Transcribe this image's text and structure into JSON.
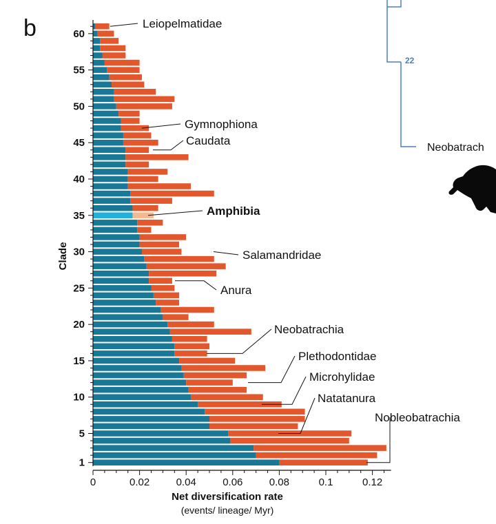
{
  "panel_label": "b",
  "colors": {
    "blue": "#1a7897",
    "orange": "#e2572c",
    "highlight_blue": "#22b0dc",
    "highlight_orange": "#f4b98e",
    "tree_line": "#4c7fc1"
  },
  "chart_data": {
    "type": "bar",
    "orientation": "horizontal",
    "stacked": true,
    "xlabel": "Net diversification rate",
    "xlabel_sub": "(events/ lineage/ Myr)",
    "ylabel": "Clade",
    "xlim": [
      0,
      0.128
    ],
    "ylim": [
      1,
      61
    ],
    "xticks": [
      "0",
      "0.02",
      "0.04",
      "0.06",
      "0.08",
      "0.1",
      "0.12"
    ],
    "yticks": [
      "1",
      "5",
      "10",
      "15",
      "20",
      "25",
      "30",
      "35",
      "40",
      "45",
      "50",
      "55",
      "60"
    ],
    "categories": [
      1,
      2,
      3,
      4,
      5,
      6,
      7,
      8,
      9,
      10,
      11,
      12,
      13,
      14,
      15,
      16,
      17,
      18,
      19,
      20,
      21,
      22,
      23,
      24,
      25,
      26,
      27,
      28,
      29,
      30,
      31,
      32,
      33,
      34,
      35,
      36,
      37,
      38,
      39,
      40,
      41,
      42,
      43,
      44,
      45,
      46,
      47,
      48,
      49,
      50,
      51,
      52,
      53,
      54,
      55,
      56,
      57,
      58,
      59,
      60,
      61
    ],
    "highlight_clade": 35,
    "series": [
      {
        "values": [
          0.08,
          0.07,
          0.069,
          0.059,
          0.058,
          0.05,
          0.05,
          0.048,
          0.045,
          0.042,
          0.041,
          0.04,
          0.039,
          0.038,
          0.037,
          0.035,
          0.035,
          0.034,
          0.033,
          0.032,
          0.03,
          0.029,
          0.027,
          0.026,
          0.025,
          0.024,
          0.024,
          0.023,
          0.022,
          0.021,
          0.02,
          0.02,
          0.019,
          0.019,
          0.017,
          0.017,
          0.016,
          0.016,
          0.015,
          0.015,
          0.015,
          0.014,
          0.014,
          0.014,
          0.013,
          0.013,
          0.012,
          0.012,
          0.011,
          0.01,
          0.009,
          0.009,
          0.008,
          0.007,
          0.006,
          0.005,
          0.004,
          0.003,
          0.003,
          0.002,
          0.001
        ]
      },
      {
        "values": [
          0.038,
          0.052,
          0.057,
          0.051,
          0.053,
          0.038,
          0.041,
          0.043,
          0.036,
          0.031,
          0.025,
          0.02,
          0.027,
          0.036,
          0.024,
          0.014,
          0.015,
          0.015,
          0.035,
          0.02,
          0.011,
          0.023,
          0.01,
          0.011,
          0.01,
          0.01,
          0.029,
          0.034,
          0.03,
          0.017,
          0.017,
          0.02,
          0.006,
          0.011,
          0.009,
          0.011,
          0.018,
          0.036,
          0.027,
          0.013,
          0.017,
          0.01,
          0.027,
          0.01,
          0.015,
          0.012,
          0.012,
          0.008,
          0.009,
          0.024,
          0.026,
          0.018,
          0.014,
          0.014,
          0.014,
          0.015,
          0.01,
          0.011,
          0.008,
          0.007,
          0.006
        ]
      }
    ],
    "annotations": [
      {
        "text": "Leiopelmatidae",
        "clade": 61,
        "bold": false
      },
      {
        "text": "Gymnophiona",
        "clade": 47,
        "bold": false
      },
      {
        "text": "Caudata",
        "clade": 44,
        "bold": false
      },
      {
        "text": "Amphibia",
        "clade": 35,
        "bold": true
      },
      {
        "text": "Salamandridae",
        "clade": 30,
        "bold": false
      },
      {
        "text": "Anura",
        "clade": 26,
        "bold": false
      },
      {
        "text": "Neobatrachia",
        "clade": 16,
        "bold": false
      },
      {
        "text": "Plethodontidae",
        "clade": 12,
        "bold": false
      },
      {
        "text": "Microhylidae",
        "clade": 9,
        "bold": false
      },
      {
        "text": "Natatanura",
        "clade": 5,
        "bold": false
      },
      {
        "text": "Nobleobatrachia",
        "clade": 1,
        "bold": false
      }
    ]
  },
  "tree": {
    "node_label": "22",
    "leaf_label": "Neobatrach",
    "silhouette_icon": "frog-silhouette-icon"
  }
}
